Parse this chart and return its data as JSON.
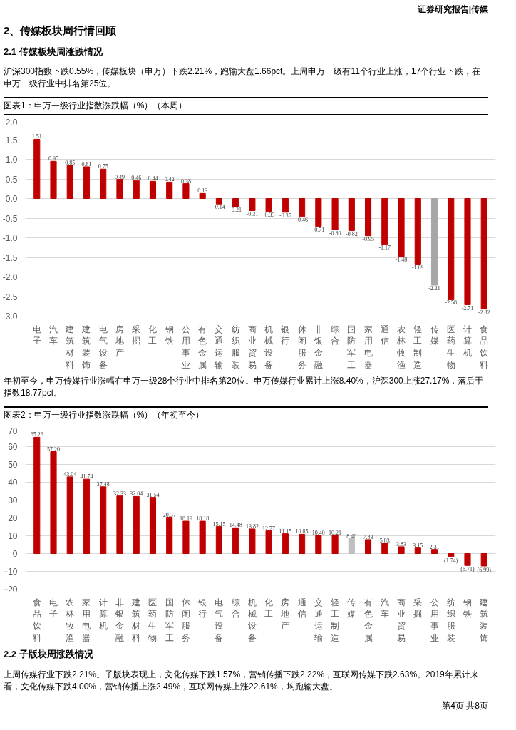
{
  "chart_data": [
    {
      "type": "bar",
      "title": "图表1：申万一级行业指数涨跌幅（%）（本周）",
      "annotations": [
        "证券研究报告|传媒",
        "2、传媒板块周行情回顾",
        "2.1 传媒板块周涨跌情况",
        "沪深300指数下跌0.55%，传媒板块（申万）下跌2.21%，跑输大盘1.66pct。上周申万一级有11个行业上涨，17个行业下跌，在申万一级行业中排名第25位。"
      ],
      "categories": [
        "电子",
        "汽车",
        "建筑材料",
        "建筑装饰",
        "电气设备",
        "房地产",
        "采掘",
        "化工",
        "钢铁",
        "公用事业",
        "有色金属",
        "交通运输",
        "纺织服装",
        "商业贸易",
        "机械设备",
        "银行",
        "休闲服务",
        "非银金融",
        "综合",
        "国防军工",
        "家用电器",
        "通信",
        "农林牧渔",
        "轻工制造",
        "传媒",
        "医药生物",
        "计算机",
        "食品饮料"
      ],
      "values": [
        1.51,
        0.95,
        0.85,
        0.81,
        0.75,
        0.49,
        0.46,
        0.44,
        0.42,
        0.38,
        0.13,
        -0.14,
        -0.21,
        -0.31,
        -0.33,
        -0.35,
        -0.46,
        -0.71,
        -0.8,
        -0.82,
        -0.95,
        -1.17,
        -1.48,
        -1.69,
        -2.21,
        -2.58,
        -2.71,
        -2.82
      ],
      "value_labels": [
        "1.51",
        "0.95",
        "0.85",
        "0.81",
        "0.75",
        "0.49",
        "0.46",
        "0.44",
        "0.42",
        "0.38",
        "0.13",
        "-0.14",
        "-0.21",
        "-0.31",
        "-0.33",
        "-0.35",
        "-0.46",
        "-0.71",
        "-0.80",
        "-0.82",
        "-0.95",
        "-1.17",
        "-1.48",
        "-1.69",
        "-2.21",
        "-2.58",
        "-2.71",
        "-2.82"
      ],
      "colors": [
        "#c00000",
        "#c00000",
        "#c00000",
        "#c00000",
        "#c00000",
        "#c00000",
        "#c00000",
        "#c00000",
        "#c00000",
        "#c00000",
        "#c00000",
        "#c00000",
        "#c00000",
        "#c00000",
        "#c00000",
        "#c00000",
        "#c00000",
        "#c00000",
        "#c00000",
        "#c00000",
        "#c00000",
        "#c00000",
        "#c00000",
        "#c00000",
        "#a6a6a6",
        "#c00000",
        "#c00000",
        "#c00000"
      ],
      "ylim": [
        -3,
        2
      ],
      "yticks": [
        {
          "value": -3,
          "label": "-3.0"
        },
        {
          "value": -2.5,
          "label": "-2.5"
        },
        {
          "value": -2,
          "label": "-2.0"
        },
        {
          "value": -1.5,
          "label": "-1.5"
        },
        {
          "value": -1,
          "label": "-1.0"
        },
        {
          "value": -0.5,
          "label": "-0.5"
        },
        {
          "value": 0,
          "label": "0.0"
        },
        {
          "value": 0.5,
          "label": "0.5"
        },
        {
          "value": 1,
          "label": "1.0"
        },
        {
          "value": 1.5,
          "label": "1.5"
        },
        {
          "value": 2,
          "label": "2.0"
        }
      ],
      "grid": "y"
    },
    {
      "type": "bar",
      "title": "图表2：申万一级行业指数涨跌幅（%）（年初至今）",
      "annotations": [
        "年初至今，申万传媒行业涨幅在申万一级28个行业中排名第20位。申万传媒行业累计上涨8.40%，沪深300上涨27.17%，落后于指数18.77pct。"
      ],
      "categories": [
        "食品饮料",
        "电子",
        "农林牧渔",
        "家用电器",
        "计算机",
        "非银金融",
        "建筑材料",
        "医药生物",
        "国防军工",
        "休闲服务",
        "银行",
        "电气设备",
        "综合",
        "机械设备",
        "化工",
        "房地产",
        "通信",
        "交通运输",
        "轻工制造",
        "传媒",
        "有色金属",
        "汽车",
        "商业贸易",
        "采掘",
        "公用事业",
        "纺织服装",
        "钢铁",
        "建筑装饰"
      ],
      "values": [
        65.26,
        57.2,
        43.04,
        41.74,
        37.48,
        32.33,
        32.04,
        31.54,
        20.37,
        18.19,
        18.18,
        15.15,
        14.48,
        13.82,
        12.77,
        11.15,
        10.85,
        10.4,
        10.21,
        8.4,
        7.83,
        5.83,
        3.83,
        3.15,
        2.31,
        -1.74,
        -6.71,
        -6.99
      ],
      "value_labels": [
        "65.26",
        "57.20",
        "43.04",
        "41.74",
        "37.48",
        "32.33",
        "32.04",
        "31.54",
        "20.37",
        "18.19",
        "18.18",
        "15.15",
        "14.48",
        "13.82",
        "12.77",
        "11.15",
        "10.85",
        "10.40",
        "10.21",
        "8.40",
        "7.83",
        "5.83",
        "3.83",
        "3.15",
        "2.31",
        "(1.74)",
        "(6.71)",
        "(6.99)"
      ],
      "colors": [
        "#c00000",
        "#c00000",
        "#c00000",
        "#c00000",
        "#c00000",
        "#c00000",
        "#c00000",
        "#c00000",
        "#c00000",
        "#c00000",
        "#c00000",
        "#c00000",
        "#c00000",
        "#c00000",
        "#c00000",
        "#c00000",
        "#c00000",
        "#c00000",
        "#c00000",
        "#bfbfbf",
        "#c00000",
        "#c00000",
        "#c00000",
        "#c00000",
        "#c00000",
        "#c00000",
        "#c00000",
        "#c00000"
      ],
      "ylim": [
        -20,
        70
      ],
      "yticks": [
        -20,
        -10,
        0,
        10,
        20,
        30,
        40,
        50,
        60,
        70
      ],
      "grid": "y"
    },
    {
      "type": "other",
      "title": "2.2 子版块周涨跌情况",
      "annotations": [
        "上周传媒行业下跌2.21%。子版块表现上，文化传媒下跌1.57%，营销传播下跌2.22%，互联网传媒下跌2.63%。2019年累计来看，文化传媒下跌4.00%，营销传播上涨2.49%，互联网传媒上涨22.61%，均跑输大盘。",
        "第4页 共8页"
      ]
    }
  ]
}
